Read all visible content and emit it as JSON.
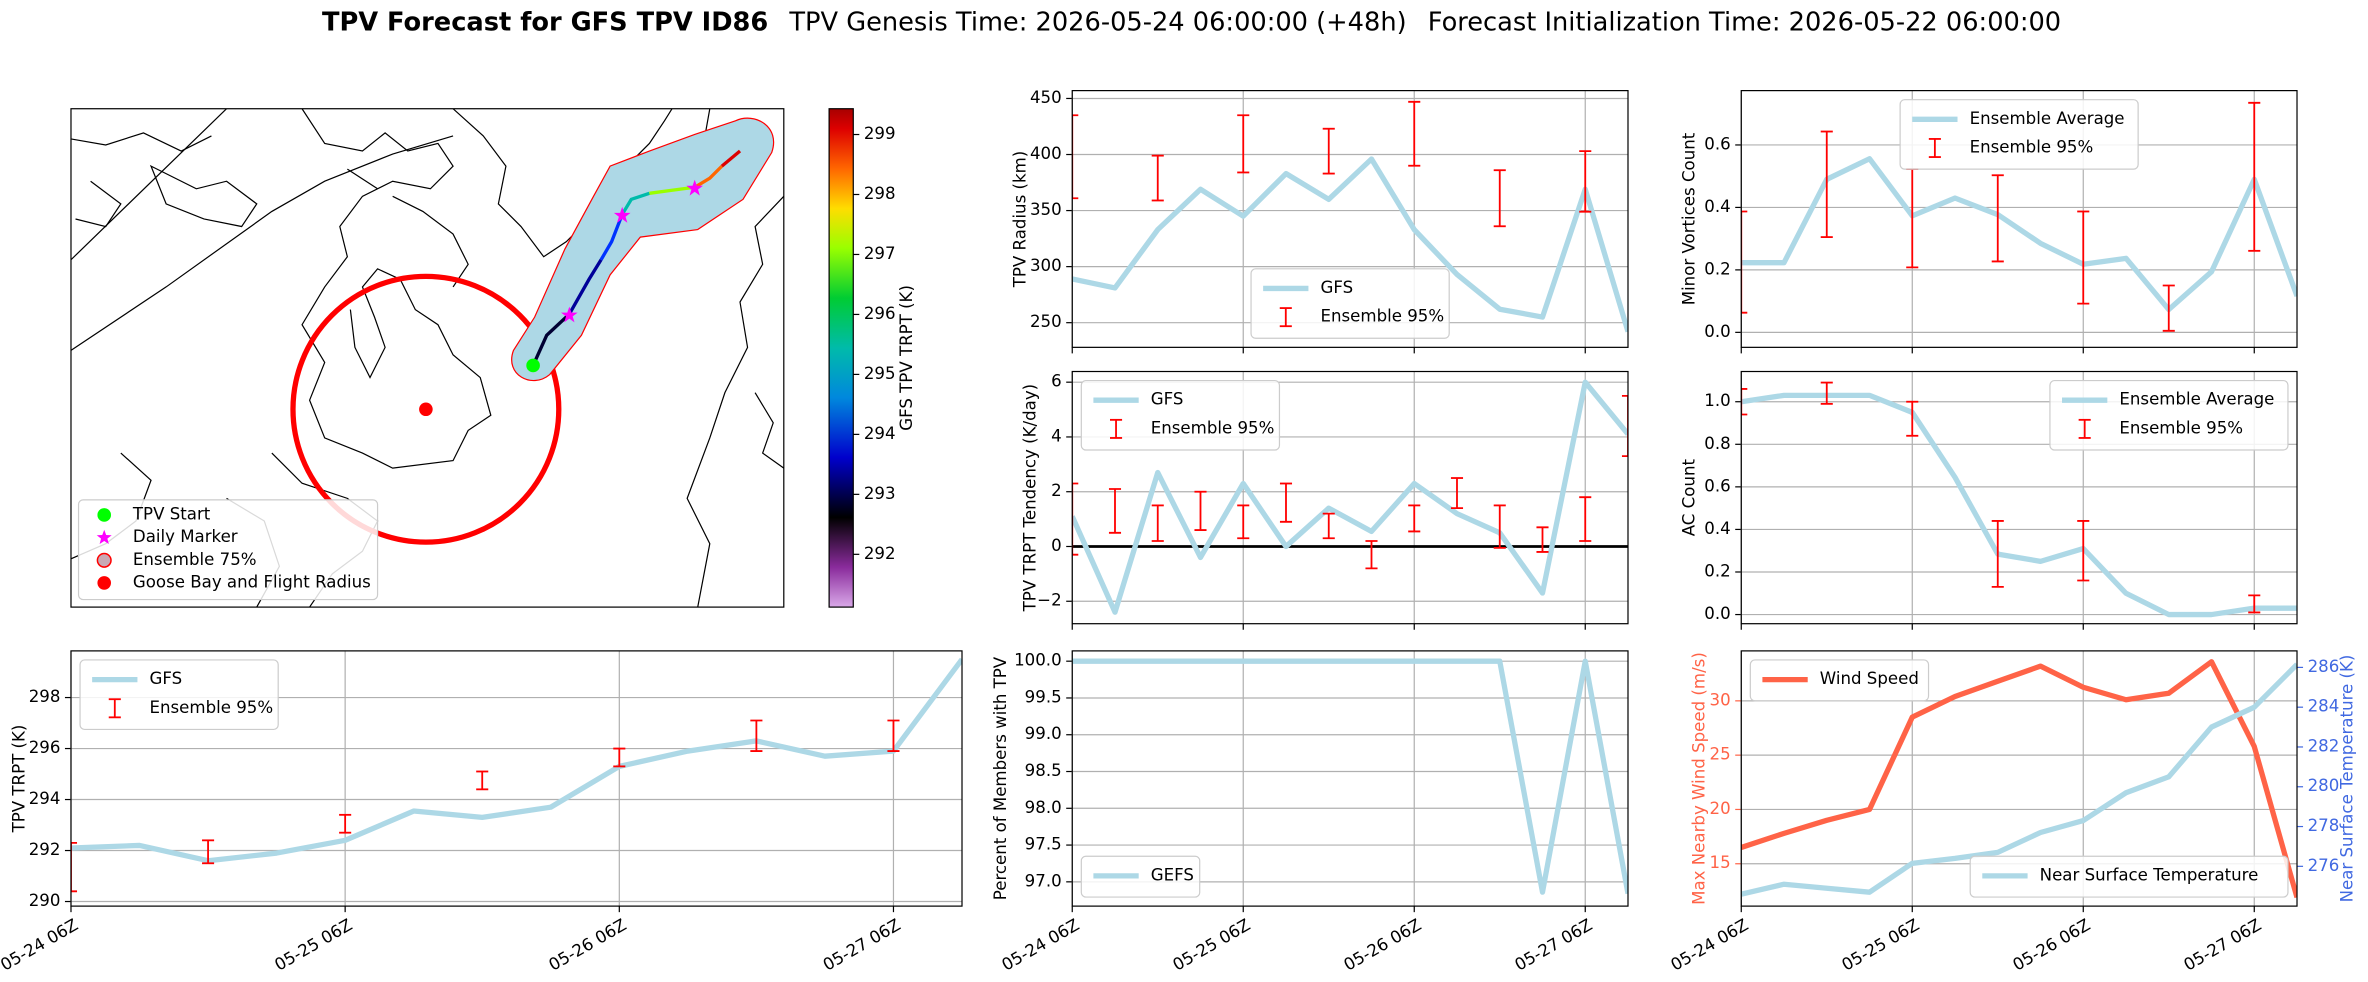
{
  "title": {
    "bold": "TPV Forecast for GFS TPV ID86",
    "genesis": "TPV Genesis Time: 2026-05-24 06:00:00 (+48h)",
    "init": "Forecast Initialization Time: 2026-05-22 06:00:00"
  },
  "chart_data": [
    {
      "type": "map",
      "colorbar_label": "GFS TPV TRPT (K)",
      "clim": [
        291.12,
        299.43
      ],
      "colorbar_ticks": [
        292,
        293,
        294,
        295,
        296,
        297,
        298,
        299
      ],
      "legend": "lower left",
      "series": [
        {
          "name": "TPV Start",
          "color": "#00ff00",
          "marker": "circle"
        },
        {
          "name": "Daily Marker",
          "color": "#ff00ff",
          "marker": "star"
        },
        {
          "name": "Ensemble 75%",
          "color": "#c9a9b4",
          "edge": "#ff0000",
          "marker": "circle"
        },
        {
          "name": "Goose Bay and Flight Radius",
          "color": "#ff0000",
          "marker": "circle"
        }
      ]
    },
    {
      "type": "line",
      "ylabel": "TPV Radius (km)",
      "x": [
        "05-24 06Z",
        "05-24 12Z",
        "05-24 18Z",
        "05-25 00Z",
        "05-25 06Z",
        "05-25 12Z",
        "05-25 18Z",
        "05-26 00Z",
        "05-26 06Z",
        "05-26 12Z",
        "05-26 18Z",
        "05-27 00Z",
        "05-27 06Z",
        "05-27 12Z"
      ],
      "xticks": [
        "05-24 06Z",
        "05-25 06Z",
        "05-26 06Z",
        "05-27 06Z"
      ],
      "ylim": [
        228,
        457
      ],
      "yticks": [
        250,
        300,
        350,
        400,
        450
      ],
      "grid": true,
      "legend": "lower center",
      "series": [
        {
          "name": "GFS",
          "color": "#add8e6",
          "values": [
            289,
            281,
            333,
            369,
            345,
            383,
            360,
            396,
            333,
            293,
            262,
            255,
            369,
            242
          ]
        },
        {
          "name": "Ensemble 95%",
          "type": "errorbar",
          "color": "#ff0000",
          "x": [
            "05-24 06Z",
            "05-24 18Z",
            "05-25 06Z",
            "05-25 18Z",
            "05-26 06Z",
            "05-26 18Z",
            "05-27 06Z"
          ],
          "low": [
            361,
            359,
            384,
            383,
            390,
            336,
            349
          ],
          "high": [
            435,
            399,
            435,
            423,
            447,
            386,
            403
          ]
        }
      ]
    },
    {
      "type": "line",
      "ylabel": "Minor Vortices Count",
      "x": [
        "05-24 06Z",
        "05-24 12Z",
        "05-24 18Z",
        "05-25 00Z",
        "05-25 06Z",
        "05-25 12Z",
        "05-25 18Z",
        "05-26 00Z",
        "05-26 06Z",
        "05-26 12Z",
        "05-26 18Z",
        "05-27 00Z",
        "05-27 06Z",
        "05-27 12Z"
      ],
      "xticks": [
        "05-24 06Z",
        "05-25 06Z",
        "05-26 06Z",
        "05-27 06Z"
      ],
      "ylim": [
        -0.048,
        0.774
      ],
      "yticks": [
        {
          "value": 0,
          "label": "0.0"
        },
        0.2,
        0.4,
        0.6
      ],
      "grid": true,
      "legend": "upper center",
      "series": [
        {
          "name": "Ensemble Average",
          "color": "#add8e6",
          "values": [
            0.223,
            0.223,
            0.49,
            0.556,
            0.373,
            0.43,
            0.377,
            0.285,
            0.218,
            0.237,
            0.073,
            0.194,
            0.49,
            0.116
          ]
        },
        {
          "name": "Ensemble 95%",
          "type": "errorbar",
          "color": "#ff0000",
          "x": [
            "05-24 06Z",
            "05-24 18Z",
            "05-25 06Z",
            "05-25 18Z",
            "05-26 06Z",
            "05-26 18Z",
            "05-27 06Z"
          ],
          "low": [
            0.063,
            0.305,
            0.208,
            0.227,
            0.092,
            0.005,
            0.261
          ],
          "high": [
            0.387,
            0.643,
            0.523,
            0.503,
            0.387,
            0.15,
            0.735
          ]
        }
      ]
    },
    {
      "type": "line",
      "ylabel": "TPV TRPT Tendency (K/day)",
      "x": [
        "05-24 06Z",
        "05-24 12Z",
        "05-24 18Z",
        "05-25 00Z",
        "05-25 06Z",
        "05-25 12Z",
        "05-25 18Z",
        "05-26 00Z",
        "05-26 06Z",
        "05-26 12Z",
        "05-26 18Z",
        "05-27 00Z",
        "05-27 06Z",
        "05-27 12Z"
      ],
      "xticks": [
        "05-24 06Z",
        "05-25 06Z",
        "05-26 06Z",
        "05-27 06Z"
      ],
      "ylim": [
        -2.82,
        6.39
      ],
      "yticks": [
        {
          "value": -2,
          "label": "−2"
        },
        0,
        2,
        4,
        6
      ],
      "grid": true,
      "zero_line": true,
      "legend": "upper left",
      "series": [
        {
          "name": "GFS",
          "color": "#add8e6",
          "values": [
            1.1,
            -2.4,
            2.7,
            -0.4,
            2.3,
            0,
            1.4,
            0.55,
            2.3,
            1.2,
            0.5,
            -1.7,
            6.0,
            4.1
          ]
        },
        {
          "name": "Ensemble 95%",
          "type": "errorbar",
          "color": "#ff0000",
          "x": [
            "05-24 06Z",
            "05-24 12Z",
            "05-24 18Z",
            "05-25 00Z",
            "05-25 06Z",
            "05-25 12Z",
            "05-25 18Z",
            "05-26 00Z",
            "05-26 06Z",
            "05-26 12Z",
            "05-26 18Z",
            "05-27 00Z",
            "05-27 06Z",
            "05-27 12Z"
          ],
          "low": [
            -0.3,
            0.5,
            0.2,
            0.6,
            0.3,
            0.9,
            0.3,
            -0.8,
            0.55,
            1.4,
            -0.05,
            -0.2,
            0.2,
            3.3
          ],
          "high": [
            2.3,
            2.1,
            1.5,
            2.0,
            1.5,
            2.3,
            1.2,
            0.2,
            1.5,
            2.5,
            1.5,
            0.7,
            1.8,
            5.5
          ]
        }
      ]
    },
    {
      "type": "line",
      "ylabel": "AC Count",
      "x": [
        "05-24 06Z",
        "05-24 12Z",
        "05-24 18Z",
        "05-25 00Z",
        "05-25 06Z",
        "05-25 12Z",
        "05-25 18Z",
        "05-26 00Z",
        "05-26 06Z",
        "05-26 12Z",
        "05-26 18Z",
        "05-27 00Z",
        "05-27 06Z",
        "05-27 12Z"
      ],
      "xticks": [
        "05-24 06Z",
        "05-25 06Z",
        "05-26 06Z",
        "05-27 06Z"
      ],
      "ylim": [
        -0.043,
        1.142
      ],
      "yticks": [
        {
          "value": 0,
          "label": "0.0"
        },
        0.2,
        0.4,
        0.6,
        0.8,
        {
          "value": 1,
          "label": "1.0"
        }
      ],
      "grid": true,
      "legend": "upper right",
      "series": [
        {
          "name": "Ensemble Average",
          "color": "#add8e6",
          "values": [
            1.0,
            1.03,
            1.03,
            1.03,
            0.95,
            0.645,
            0.284,
            0.25,
            0.31,
            0.1,
            0,
            0,
            0.03,
            0.03
          ]
        },
        {
          "name": "Ensemble 95%",
          "type": "errorbar",
          "color": "#ff0000",
          "x": [
            "05-24 06Z",
            "05-24 18Z",
            "05-25 06Z",
            "05-25 18Z",
            "05-26 06Z",
            "05-27 06Z"
          ],
          "low": [
            0.94,
            0.99,
            0.84,
            0.13,
            0.16,
            0.01
          ],
          "high": [
            1.06,
            1.09,
            1.0,
            0.44,
            0.44,
            0.09
          ]
        }
      ]
    },
    {
      "type": "line",
      "ylabel": "TPV TRPT (K)",
      "x": [
        "05-24 06Z",
        "05-24 12Z",
        "05-24 18Z",
        "05-25 00Z",
        "05-25 06Z",
        "05-25 12Z",
        "05-25 18Z",
        "05-26 00Z",
        "05-26 06Z",
        "05-26 12Z",
        "05-26 18Z",
        "05-27 00Z",
        "05-27 06Z",
        "05-27 12Z"
      ],
      "xticks": [
        "05-24 06Z",
        "05-25 06Z",
        "05-26 06Z",
        "05-27 06Z"
      ],
      "ylim": [
        289.82,
        299.83
      ],
      "yticks": [
        290,
        292,
        294,
        296,
        298
      ],
      "grid": true,
      "legend": "upper left",
      "series": [
        {
          "name": "GFS",
          "color": "#add8e6",
          "values": [
            292.1,
            292.2,
            291.6,
            291.9,
            292.4,
            293.55,
            293.3,
            293.7,
            295.3,
            295.9,
            296.3,
            295.7,
            295.9,
            299.5
          ]
        },
        {
          "name": "Ensemble 95%",
          "type": "errorbar",
          "color": "#ff0000",
          "x": [
            "05-24 06Z",
            "05-24 18Z",
            "05-25 06Z",
            "05-25 18Z",
            "05-26 06Z",
            "05-26 18Z",
            "05-27 06Z"
          ],
          "low": [
            290.4,
            291.5,
            292.7,
            294.4,
            295.3,
            295.9,
            295.9
          ],
          "high": [
            292.3,
            292.4,
            293.4,
            295.1,
            296.0,
            297.1,
            297.1
          ]
        }
      ]
    },
    {
      "type": "line",
      "ylabel": "Percent of Members with TPV",
      "x": [
        "05-24 06Z",
        "05-24 12Z",
        "05-24 18Z",
        "05-25 00Z",
        "05-25 06Z",
        "05-25 12Z",
        "05-25 18Z",
        "05-26 00Z",
        "05-26 06Z",
        "05-26 12Z",
        "05-26 18Z",
        "05-27 00Z",
        "05-27 06Z",
        "05-27 12Z"
      ],
      "xticks": [
        "05-24 06Z",
        "05-25 06Z",
        "05-26 06Z",
        "05-27 06Z"
      ],
      "ylim": [
        96.67,
        100.14
      ],
      "yticks": [
        {
          "value": 97,
          "label": "97.0"
        },
        97.5,
        {
          "value": 98,
          "label": "98.0"
        },
        98.5,
        {
          "value": 99,
          "label": "99.0"
        },
        99.5,
        {
          "value": 100,
          "label": "100.0"
        }
      ],
      "grid": true,
      "legend": "lower left",
      "series": [
        {
          "name": "GEFS",
          "color": "#add8e6",
          "values": [
            100,
            100,
            100,
            100,
            100,
            100,
            100,
            100,
            100,
            100,
            100,
            96.86,
            100,
            96.84
          ]
        }
      ]
    },
    {
      "type": "line",
      "ylabel": "Max Nearby Wind Speed (m/s)",
      "ylabel_color": "#ff6347",
      "y2label": "Near Surface Temperature (K)",
      "y2label_color": "#4169e1",
      "x": [
        "05-24 06Z",
        "05-24 12Z",
        "05-24 18Z",
        "05-25 00Z",
        "05-25 06Z",
        "05-25 12Z",
        "05-25 18Z",
        "05-26 00Z",
        "05-26 06Z",
        "05-26 12Z",
        "05-26 18Z",
        "05-27 00Z",
        "05-27 06Z",
        "05-27 12Z"
      ],
      "xticks": [
        "05-24 06Z",
        "05-25 06Z",
        "05-26 06Z",
        "05-27 06Z"
      ],
      "ylim": [
        11.1,
        34.6
      ],
      "yticks": [
        15,
        20,
        25,
        30
      ],
      "y2lim": [
        274.0,
        286.83
      ],
      "y2ticks": [
        276,
        278,
        280,
        282,
        284,
        286
      ],
      "grid": true,
      "series": [
        {
          "name": "Wind Speed",
          "color": "#ff6347",
          "legend": "upper left",
          "values": [
            16.5,
            17.8,
            19.0,
            20.0,
            28.5,
            30.4,
            31.8,
            33.2,
            31.25,
            30.1,
            30.7,
            33.6,
            25.8,
            11.9
          ]
        },
        {
          "name": "Near Surface Temperature",
          "color": "#add8e6",
          "axis": "y2",
          "legend": "lower right",
          "values": [
            274.6,
            275.1,
            274.9,
            274.7,
            276.15,
            276.4,
            276.7,
            277.7,
            278.3,
            279.7,
            280.5,
            283.0,
            284.0,
            286.15
          ]
        }
      ]
    }
  ]
}
